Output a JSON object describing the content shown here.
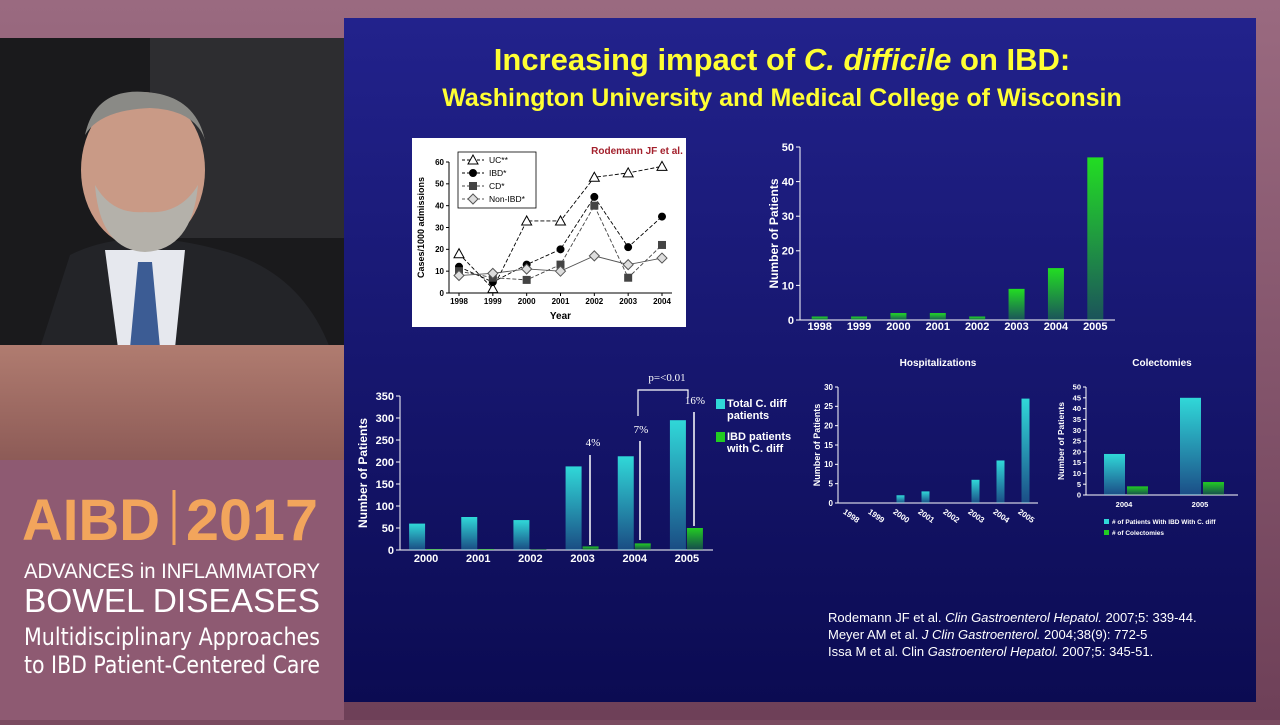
{
  "slide": {
    "title": [
      "Increasing impact of ",
      "C. difficile",
      " on IBD:"
    ],
    "subtitle": "Washington University and Medical College of Wisconsin",
    "references": [
      [
        "Rodemann JF et al. ",
        "Clin Gastroenterol Hepatol.",
        " 2007;5: 339-44."
      ],
      [
        "Meyer AM et al. ",
        "J Clin Gastroenterol.",
        " 2004;38(9): 772-5"
      ],
      [
        "Issa M et al. Clin ",
        "Gastroenterol Hepatol.",
        " 2007;5: 345-51."
      ]
    ]
  },
  "event": {
    "logo_left": "AIBD",
    "logo_right": "2017",
    "line1": "ADVANCES in INFLAMMATORY",
    "line2": "BOWEL DISEASES",
    "line3": "Multidisciplinary Approaches",
    "line4": "to IBD Patient-Centered Care"
  },
  "chart_data": [
    {
      "type": "line",
      "annotation": "Rodemann JF et al.",
      "xlabel": "Year",
      "ylabel": "Cases/1000 admissions",
      "categories": [
        "1998",
        "1999",
        "2000",
        "2001",
        "2002",
        "2003",
        "2004"
      ],
      "ylim": [
        0,
        60
      ],
      "yticks": [
        0,
        10,
        20,
        30,
        40,
        50,
        60
      ],
      "legend": "upper left",
      "series": [
        {
          "name": "UC**",
          "color": "#000000",
          "marker": "triangle-open",
          "values": [
            18,
            2,
            33,
            33,
            53,
            55,
            58
          ]
        },
        {
          "name": "IBD*",
          "color": "#000000",
          "marker": "circle",
          "values": [
            12,
            5,
            13,
            20,
            44,
            21,
            35
          ]
        },
        {
          "name": "CD*",
          "color": "#444444",
          "marker": "square",
          "values": [
            10,
            7,
            6,
            13,
            40,
            7,
            22
          ]
        },
        {
          "name": "Non-IBD*",
          "color": "#555555",
          "marker": "diamond-open",
          "values": [
            8,
            9,
            11,
            10,
            17,
            13,
            16
          ]
        }
      ]
    },
    {
      "type": "bar",
      "ylabel": "Number of Patients",
      "categories": [
        "1998",
        "1999",
        "2000",
        "2001",
        "2002",
        "2003",
        "2004",
        "2005"
      ],
      "values": [
        1,
        1,
        2,
        2,
        1,
        9,
        15,
        47
      ],
      "color": "#22dd22",
      "ylim": [
        0,
        50
      ],
      "yticks": [
        0,
        10,
        20,
        30,
        40,
        50
      ]
    },
    {
      "type": "bar",
      "ylabel": "Number of Patients",
      "categories": [
        "2000",
        "2001",
        "2002",
        "2003",
        "2004",
        "2005"
      ],
      "ylim": [
        0,
        350
      ],
      "yticks": [
        0,
        50,
        100,
        150,
        200,
        250,
        300,
        350
      ],
      "legend": "right",
      "annotations": [
        "4%",
        "7%",
        "16%",
        "p=<0.01"
      ],
      "series": [
        {
          "name": "Total C. diff patients",
          "color": "#30d8d8",
          "values": [
            60,
            75,
            68,
            190,
            213,
            295
          ]
        },
        {
          "name": "IBD patients with C. diff",
          "color": "#22cc22",
          "values": [
            2,
            2,
            1,
            8,
            15,
            50
          ]
        }
      ]
    },
    {
      "type": "bar",
      "title": "Hospitalizations",
      "ylabel": "Number of Patients",
      "categories": [
        "1998",
        "1999",
        "2000",
        "2001",
        "2002",
        "2003",
        "2004",
        "2005"
      ],
      "values": [
        0,
        0,
        2,
        3,
        0,
        6,
        11,
        27
      ],
      "color": "#30d8d8",
      "ylim": [
        0,
        30
      ],
      "yticks": [
        0,
        5,
        10,
        15,
        20,
        25,
        30
      ]
    },
    {
      "type": "bar",
      "title": "Colectomies",
      "ylabel": "Number of Patients",
      "categories": [
        "2004",
        "2005"
      ],
      "ylim": [
        0,
        50
      ],
      "yticks": [
        0,
        5,
        10,
        15,
        20,
        25,
        30,
        35,
        40,
        45,
        50
      ],
      "legend": "below",
      "series": [
        {
          "name": "# of Patients With IBD With C. diff",
          "color": "#30d8d8",
          "values": [
            19,
            45
          ]
        },
        {
          "name": "# of Colectomies",
          "color": "#22cc22",
          "values": [
            4,
            6
          ]
        }
      ]
    }
  ]
}
